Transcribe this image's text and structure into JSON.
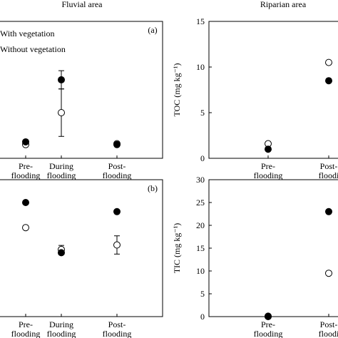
{
  "headers": {
    "left": "Fluvial area",
    "right": "Riparian area"
  },
  "legend": {
    "with": "With vegetation",
    "without": "Without vegetation"
  },
  "x_categories": [
    [
      "Pre-",
      "flooding"
    ],
    [
      "During",
      "flooding"
    ],
    [
      "Post-",
      "flooding"
    ]
  ],
  "x_categories_right": [
    [
      "Pre-",
      "flooding"
    ],
    [
      "Post-",
      "floodi"
    ]
  ],
  "chart_data": [
    {
      "type": "scatter",
      "panel": "fluvial-top",
      "tag": "(a)",
      "categories": [
        "Pre-flooding",
        "During flooding",
        "Post-flooding"
      ],
      "ylim": [
        0,
        15
      ],
      "series": [
        {
          "name": "With vegetation",
          "marker": "filled-circle",
          "values": [
            1.8,
            8.6,
            1.5
          ],
          "err": [
            0,
            1.0,
            0
          ]
        },
        {
          "name": "Without vegetation",
          "marker": "open-circle",
          "values": [
            1.5,
            5.0,
            1.6
          ],
          "err": [
            0,
            2.6,
            0
          ]
        }
      ]
    },
    {
      "type": "scatter",
      "panel": "riparian-top",
      "categories": [
        "Pre-flooding",
        "Post-flooding"
      ],
      "ylabel": "TOC (mg kg⁻¹)",
      "ylim": [
        0,
        15
      ],
      "yticks": [
        0,
        5,
        10,
        15
      ],
      "series": [
        {
          "name": "With vegetation",
          "marker": "filled-circle",
          "values": [
            1.0,
            8.5
          ]
        },
        {
          "name": "Without vegetation",
          "marker": "open-circle",
          "values": [
            1.6,
            10.5
          ]
        }
      ]
    },
    {
      "type": "scatter",
      "panel": "fluvial-bottom",
      "tag": "(b)",
      "categories": [
        "Pre-flooding",
        "During flooding",
        "Post-flooding"
      ],
      "ylim": [
        0,
        30
      ],
      "series": [
        {
          "name": "With vegetation",
          "marker": "filled-circle",
          "values": [
            25.0,
            14.0,
            23.0
          ],
          "err": [
            0,
            0,
            0
          ]
        },
        {
          "name": "Without vegetation",
          "marker": "open-circle",
          "values": [
            19.5,
            14.7,
            15.7
          ],
          "err": [
            0,
            0.9,
            2.0
          ]
        }
      ]
    },
    {
      "type": "scatter",
      "panel": "riparian-bottom",
      "categories": [
        "Pre-flooding",
        "Post-flooding"
      ],
      "ylabel": "TIC (mg kg⁻¹)",
      "ylim": [
        0,
        30
      ],
      "yticks": [
        0,
        5,
        10,
        15,
        20,
        25,
        30
      ],
      "series": [
        {
          "name": "With vegetation",
          "marker": "filled-circle",
          "values": [
            0.0,
            23.0
          ]
        },
        {
          "name": "Without vegetation",
          "marker": "open-circle",
          "values": [
            0.1,
            9.5
          ]
        }
      ]
    }
  ]
}
